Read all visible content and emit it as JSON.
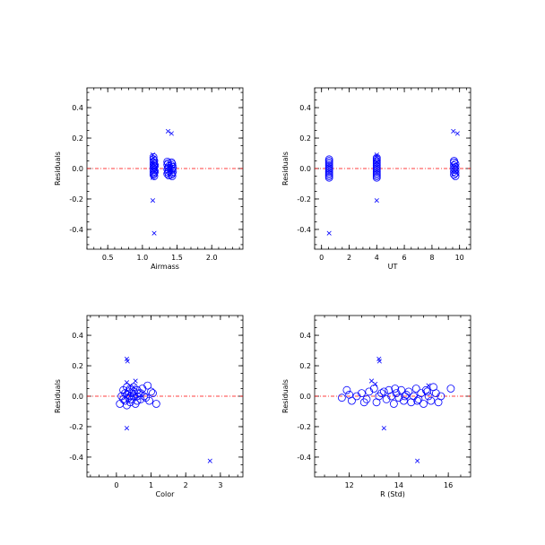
{
  "chart_data": [
    {
      "type": "scatter",
      "xlabel": "Airmass",
      "ylabel": "Residuals",
      "xlim": [
        0.2,
        2.45
      ],
      "ylim": [
        -0.53,
        0.53
      ],
      "xticks": [
        0.5,
        1.0,
        1.5,
        2.0
      ],
      "xtick_labels": [
        "0.5",
        "1.0",
        "1.5",
        "2.0"
      ],
      "xminor_step": 0.1,
      "yticks": [
        -0.4,
        -0.2,
        0.0,
        0.2,
        0.4
      ],
      "ytick_labels": [
        "-0.4",
        "-0.2",
        "0.0",
        "0.2",
        "0.4"
      ],
      "yminor_step": 0.05,
      "reference_line_y": 0.0,
      "series": [
        {
          "marker": "circle",
          "points": [
            [
              1.16,
              0.06
            ],
            [
              1.17,
              0.05
            ],
            [
              1.16,
              0.04
            ],
            [
              1.17,
              0.03
            ],
            [
              1.16,
              0.02
            ],
            [
              1.17,
              0.01
            ],
            [
              1.16,
              0.0
            ],
            [
              1.17,
              -0.01
            ],
            [
              1.16,
              -0.02
            ],
            [
              1.17,
              -0.03
            ],
            [
              1.16,
              -0.04
            ],
            [
              1.17,
              -0.05
            ],
            [
              1.18,
              0.02
            ],
            [
              1.18,
              -0.02
            ],
            [
              1.16,
              0.075
            ],
            [
              1.36,
              0.045
            ],
            [
              1.37,
              0.035
            ],
            [
              1.36,
              0.025
            ],
            [
              1.38,
              0.015
            ],
            [
              1.37,
              0.005
            ],
            [
              1.36,
              -0.005
            ],
            [
              1.38,
              -0.015
            ],
            [
              1.37,
              -0.025
            ],
            [
              1.36,
              -0.035
            ],
            [
              1.38,
              -0.045
            ],
            [
              1.42,
              0.04
            ],
            [
              1.43,
              0.03
            ],
            [
              1.42,
              0.02
            ],
            [
              1.44,
              0.01
            ],
            [
              1.43,
              0.0
            ],
            [
              1.42,
              -0.01
            ],
            [
              1.44,
              -0.02
            ],
            [
              1.43,
              -0.03
            ],
            [
              1.42,
              -0.04
            ],
            [
              1.43,
              -0.05
            ]
          ]
        },
        {
          "marker": "cross",
          "points": [
            [
              1.15,
              0.09
            ],
            [
              1.16,
              0.07
            ],
            [
              1.15,
              0.05
            ],
            [
              1.16,
              0.03
            ],
            [
              1.17,
              -0.02
            ],
            [
              1.15,
              -0.06
            ],
            [
              1.37,
              0.245
            ],
            [
              1.42,
              0.23
            ],
            [
              1.15,
              -0.21
            ],
            [
              1.17,
              -0.425
            ]
          ]
        }
      ]
    },
    {
      "type": "scatter",
      "xlabel": "UT",
      "ylabel": "Residuals",
      "xlim": [
        -0.5,
        10.8
      ],
      "ylim": [
        -0.53,
        0.53
      ],
      "xticks": [
        0,
        2,
        4,
        6,
        8,
        10
      ],
      "xtick_labels": [
        "0",
        "2",
        "4",
        "6",
        "8",
        "10"
      ],
      "xminor_step": 0.5,
      "yticks": [
        -0.4,
        -0.2,
        0.0,
        0.2,
        0.4
      ],
      "ytick_labels": [
        "-0.4",
        "-0.2",
        "0.0",
        "0.2",
        "0.4"
      ],
      "yminor_step": 0.05,
      "reference_line_y": 0.0,
      "series": [
        {
          "marker": "circle",
          "points": [
            [
              0.55,
              0.06
            ],
            [
              0.55,
              0.05
            ],
            [
              0.55,
              0.04
            ],
            [
              0.55,
              0.03
            ],
            [
              0.55,
              0.02
            ],
            [
              0.55,
              0.01
            ],
            [
              0.55,
              0.0
            ],
            [
              0.55,
              -0.01
            ],
            [
              0.55,
              -0.02
            ],
            [
              0.55,
              -0.03
            ],
            [
              0.55,
              -0.04
            ],
            [
              0.55,
              -0.05
            ],
            [
              0.55,
              -0.06
            ],
            [
              4.0,
              0.07
            ],
            [
              4.0,
              0.06
            ],
            [
              4.0,
              0.05
            ],
            [
              4.0,
              0.04
            ],
            [
              4.0,
              0.03
            ],
            [
              4.0,
              0.02
            ],
            [
              4.0,
              0.01
            ],
            [
              4.0,
              0.0
            ],
            [
              4.0,
              -0.01
            ],
            [
              4.0,
              -0.02
            ],
            [
              4.0,
              -0.03
            ],
            [
              4.0,
              -0.04
            ],
            [
              4.0,
              -0.05
            ],
            [
              4.0,
              -0.06
            ],
            [
              9.6,
              0.05
            ],
            [
              9.6,
              0.04
            ],
            [
              9.7,
              0.03
            ],
            [
              9.6,
              0.02
            ],
            [
              9.7,
              0.01
            ],
            [
              9.6,
              0.0
            ],
            [
              9.7,
              -0.01
            ],
            [
              9.6,
              -0.02
            ],
            [
              9.7,
              -0.03
            ],
            [
              9.6,
              -0.04
            ],
            [
              9.7,
              -0.05
            ]
          ]
        },
        {
          "marker": "cross",
          "points": [
            [
              4.0,
              0.09
            ],
            [
              4.0,
              0.075
            ],
            [
              4.0,
              0.045
            ],
            [
              9.55,
              0.245
            ],
            [
              9.85,
              0.23
            ],
            [
              4.0,
              -0.21
            ],
            [
              0.55,
              -0.425
            ]
          ]
        }
      ]
    },
    {
      "type": "scatter",
      "xlabel": "Color",
      "ylabel": "Residuals",
      "xlim": [
        -0.85,
        3.65
      ],
      "ylim": [
        -0.53,
        0.53
      ],
      "xticks": [
        0,
        1,
        2,
        3
      ],
      "xtick_labels": [
        "0",
        "1",
        "2",
        "3"
      ],
      "xminor_step": 0.25,
      "yticks": [
        -0.4,
        -0.2,
        0.0,
        0.2,
        0.4
      ],
      "ytick_labels": [
        "-0.4",
        "-0.2",
        "0.0",
        "0.2",
        "0.4"
      ],
      "yminor_step": 0.05,
      "reference_line_y": 0.0,
      "series": [
        {
          "marker": "circle",
          "points": [
            [
              0.1,
              -0.05
            ],
            [
              0.15,
              0.0
            ],
            [
              0.2,
              0.04
            ],
            [
              0.25,
              0.02
            ],
            [
              0.25,
              -0.03
            ],
            [
              0.3,
              0.06
            ],
            [
              0.3,
              -0.06
            ],
            [
              0.35,
              0.03
            ],
            [
              0.35,
              -0.01
            ],
            [
              0.4,
              0.05
            ],
            [
              0.4,
              -0.04
            ],
            [
              0.45,
              0.02
            ],
            [
              0.45,
              -0.02
            ],
            [
              0.5,
              0.06
            ],
            [
              0.5,
              0.0
            ],
            [
              0.55,
              -0.05
            ],
            [
              0.6,
              0.04
            ],
            [
              0.6,
              -0.03
            ],
            [
              0.65,
              0.02
            ],
            [
              0.7,
              -0.02
            ],
            [
              0.75,
              0.05
            ],
            [
              0.8,
              0.0
            ],
            [
              0.9,
              0.07
            ],
            [
              0.95,
              -0.03
            ],
            [
              1.05,
              0.02
            ],
            [
              1.15,
              -0.05
            ],
            [
              0.2,
              -0.02
            ],
            [
              0.3,
              0.01
            ],
            [
              0.4,
              0.0
            ],
            [
              0.5,
              0.03
            ],
            [
              0.6,
              0.0
            ],
            [
              0.7,
              0.02
            ],
            [
              0.85,
              -0.01
            ],
            [
              1.0,
              0.03
            ]
          ]
        },
        {
          "marker": "cross",
          "points": [
            [
              0.3,
              0.09
            ],
            [
              0.4,
              0.07
            ],
            [
              0.5,
              0.06
            ],
            [
              0.55,
              0.1
            ],
            [
              0.3,
              0.245
            ],
            [
              0.32,
              0.23
            ],
            [
              0.3,
              -0.21
            ],
            [
              2.7,
              -0.425
            ]
          ]
        }
      ]
    },
    {
      "type": "scatter",
      "xlabel": "R (Std)",
      "ylabel": "Residuals",
      "xlim": [
        10.6,
        16.9
      ],
      "ylim": [
        -0.53,
        0.53
      ],
      "xticks": [
        12,
        14,
        16
      ],
      "xtick_labels": [
        "12",
        "14",
        "16"
      ],
      "xminor_step": 0.5,
      "yticks": [
        -0.4,
        -0.2,
        0.0,
        0.2,
        0.4
      ],
      "ytick_labels": [
        "-0.4",
        "-0.2",
        "0.0",
        "0.2",
        "0.4"
      ],
      "yminor_step": 0.05,
      "reference_line_y": 0.0,
      "series": [
        {
          "marker": "circle",
          "points": [
            [
              11.7,
              -0.01
            ],
            [
              11.9,
              0.04
            ],
            [
              12.1,
              -0.03
            ],
            [
              12.3,
              0.0
            ],
            [
              12.5,
              0.02
            ],
            [
              12.7,
              -0.02
            ],
            [
              12.8,
              0.03
            ],
            [
              13.0,
              0.05
            ],
            [
              13.1,
              -0.04
            ],
            [
              13.2,
              0.0
            ],
            [
              13.4,
              0.03
            ],
            [
              13.5,
              -0.02
            ],
            [
              13.6,
              0.04
            ],
            [
              13.7,
              0.0
            ],
            [
              13.8,
              -0.05
            ],
            [
              13.9,
              0.02
            ],
            [
              14.0,
              -0.01
            ],
            [
              14.1,
              0.04
            ],
            [
              14.2,
              -0.03
            ],
            [
              14.3,
              0.01
            ],
            [
              14.4,
              0.03
            ],
            [
              14.5,
              -0.04
            ],
            [
              14.6,
              0.0
            ],
            [
              14.7,
              0.05
            ],
            [
              14.8,
              -0.02
            ],
            [
              14.9,
              0.02
            ],
            [
              15.0,
              -0.05
            ],
            [
              15.1,
              0.04
            ],
            [
              15.2,
              0.0
            ],
            [
              15.3,
              -0.03
            ],
            [
              15.4,
              0.06
            ],
            [
              15.5,
              0.02
            ],
            [
              15.6,
              -0.04
            ],
            [
              15.7,
              0.0
            ],
            [
              16.1,
              0.05
            ],
            [
              12.0,
              0.01
            ],
            [
              12.6,
              -0.04
            ],
            [
              13.3,
              0.02
            ],
            [
              14.25,
              0.0
            ],
            [
              15.15,
              0.03
            ],
            [
              14.75,
              -0.03
            ],
            [
              13.85,
              0.05
            ]
          ]
        },
        {
          "marker": "cross",
          "points": [
            [
              12.9,
              0.1
            ],
            [
              13.05,
              0.08
            ],
            [
              15.2,
              0.07
            ],
            [
              13.2,
              0.245
            ],
            [
              13.22,
              0.23
            ],
            [
              13.4,
              -0.21
            ],
            [
              14.75,
              -0.425
            ]
          ]
        }
      ]
    }
  ]
}
